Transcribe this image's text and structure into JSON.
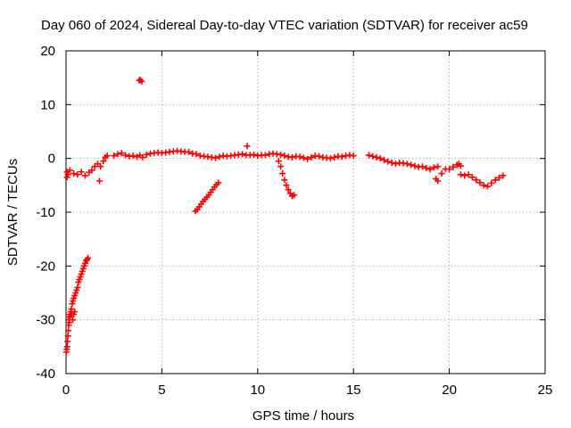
{
  "chart_data": {
    "type": "scatter",
    "title": "Day 060 of 2024, Sidereal Day-to-day VTEC variation (SDTVAR) for receiver ac59",
    "xlabel": "GPS time / hours",
    "ylabel": "SDTVAR / TECUs",
    "xlim": [
      0,
      25
    ],
    "ylim": [
      -40,
      20
    ],
    "grid": true,
    "marker": "+",
    "color": "#ff0000",
    "x_ticks": [
      0,
      5,
      10,
      15,
      20,
      25
    ],
    "y_ticks": [
      -40,
      -30,
      -20,
      -10,
      0,
      10,
      20
    ],
    "x_tick_labels": [
      "0",
      "5",
      "10",
      "15",
      "20",
      "25"
    ],
    "y_tick_labels": [
      "-40",
      "-30",
      "-20",
      "-10",
      "0",
      "10",
      "20"
    ],
    "series": [
      {
        "name": "SDTVAR",
        "x": [
          0.02,
          0.04,
          0.06,
          0.08,
          0.1,
          0.12,
          0.14,
          0.16,
          0.18,
          0.2,
          0.22,
          0.25,
          0.28,
          0.32,
          0.36,
          0.4,
          0.45,
          0.5,
          0.55,
          0.6,
          0.65,
          0.7,
          0.75,
          0.8,
          0.85,
          0.9,
          0.95,
          1.0,
          1.05,
          1.1,
          1.15,
          0.05,
          0.1,
          0.15,
          0.2,
          0.25,
          0.3,
          0.35,
          0.4,
          0.45,
          0.05,
          0.2,
          0.4,
          0.6,
          0.8,
          1.0,
          1.2,
          1.35,
          1.5,
          1.65,
          1.8,
          1.95,
          2.05,
          2.15,
          1.75,
          2.5,
          2.7,
          2.9,
          3.1,
          3.3,
          3.5,
          3.7,
          3.85,
          4.0,
          4.2,
          4.4,
          4.6,
          4.8,
          5.0,
          5.2,
          5.4,
          5.6,
          5.8,
          6.0,
          6.2,
          6.4,
          6.6,
          6.8,
          7.0,
          7.2,
          7.4,
          7.6,
          7.8,
          8.0,
          8.2,
          8.4,
          8.6,
          8.8,
          9.0,
          9.2,
          9.4,
          9.6,
          9.8,
          10.0,
          10.2,
          10.4,
          10.6,
          10.8,
          11.0,
          11.2,
          11.4,
          11.6,
          11.8,
          12.0,
          12.2,
          12.4,
          12.6,
          12.8,
          13.0,
          13.2,
          13.4,
          13.6,
          13.8,
          14.0,
          14.2,
          14.4,
          14.6,
          14.8,
          15.0,
          3.82,
          3.88,
          3.95,
          9.45,
          6.75,
          6.85,
          6.95,
          7.05,
          7.15,
          7.25,
          7.35,
          7.45,
          7.55,
          7.65,
          7.75,
          7.85,
          7.95,
          11.1,
          11.2,
          11.3,
          11.4,
          11.5,
          11.6,
          11.7,
          11.8,
          11.9,
          15.8,
          16.0,
          16.2,
          16.4,
          16.6,
          16.8,
          17.0,
          17.2,
          17.4,
          17.6,
          17.8,
          18.0,
          18.2,
          18.4,
          18.6,
          18.8,
          19.0,
          19.2,
          19.4,
          19.6,
          19.8,
          20.0,
          20.2,
          20.4,
          20.6,
          20.8,
          21.0,
          21.2,
          21.4,
          21.6,
          21.8,
          22.0,
          22.2,
          22.4,
          22.6,
          22.8,
          20.5,
          20.6,
          19.3,
          19.4
        ],
        "y": [
          -36.0,
          -35.5,
          -35.0,
          -34.0,
          -33.0,
          -32.0,
          -31.0,
          -30.5,
          -30.0,
          -29.5,
          -29.0,
          -28.5,
          -28.0,
          -27.0,
          -26.5,
          -26.0,
          -25.5,
          -25.0,
          -24.5,
          -24.0,
          -23.0,
          -22.5,
          -22.0,
          -21.5,
          -21.0,
          -20.5,
          -20.0,
          -19.5,
          -19.0,
          -18.8,
          -18.5,
          -3.5,
          -3.0,
          -29.5,
          -29.0,
          -28.5,
          -29.0,
          -30.0,
          -29.0,
          -28.5,
          -2.5,
          -2.2,
          -2.8,
          -3.0,
          -2.5,
          -3.2,
          -2.6,
          -2.2,
          -1.5,
          -1.0,
          -1.5,
          -0.5,
          0.2,
          0.5,
          -4.2,
          0.5,
          0.8,
          1.0,
          0.6,
          0.4,
          0.5,
          0.3,
          0.6,
          0.2,
          0.7,
          0.9,
          1.0,
          1.1,
          1.0,
          1.1,
          1.2,
          1.3,
          1.4,
          1.3,
          1.2,
          1.2,
          0.9,
          0.8,
          0.5,
          0.4,
          0.3,
          0.2,
          0.1,
          0.3,
          0.5,
          0.4,
          0.5,
          0.6,
          0.7,
          0.8,
          0.6,
          0.6,
          0.7,
          0.5,
          0.6,
          0.6,
          0.8,
          0.9,
          0.8,
          0.7,
          0.5,
          0.3,
          0.2,
          0.4,
          0.3,
          0.1,
          -0.1,
          0.2,
          0.5,
          0.4,
          0.2,
          0.1,
          0.0,
          0.2,
          0.4,
          0.3,
          0.5,
          0.6,
          0.5,
          14.5,
          14.6,
          14.3,
          2.3,
          -9.8,
          -9.5,
          -9.0,
          -8.5,
          -8.0,
          -7.6,
          -7.2,
          -6.8,
          -6.3,
          -5.8,
          -5.3,
          -4.9,
          -4.5,
          -0.5,
          -1.5,
          -2.8,
          -4.0,
          -5.0,
          -5.8,
          -6.5,
          -7.0,
          -6.8,
          0.6,
          0.4,
          0.2,
          0.0,
          -0.3,
          -0.6,
          -0.8,
          -1.0,
          -0.8,
          -0.9,
          -1.0,
          -1.2,
          -1.4,
          -1.6,
          -1.5,
          -1.8,
          -2.0,
          -1.7,
          -1.5,
          -2.8,
          -2.0,
          -2.0,
          -1.6,
          -1.2,
          -3.0,
          -3.2,
          -3.0,
          -3.5,
          -4.0,
          -4.5,
          -5.0,
          -5.2,
          -4.6,
          -4.0,
          -3.6,
          -3.2,
          -1.0,
          -1.4,
          -3.8,
          -4.2
        ]
      }
    ]
  }
}
